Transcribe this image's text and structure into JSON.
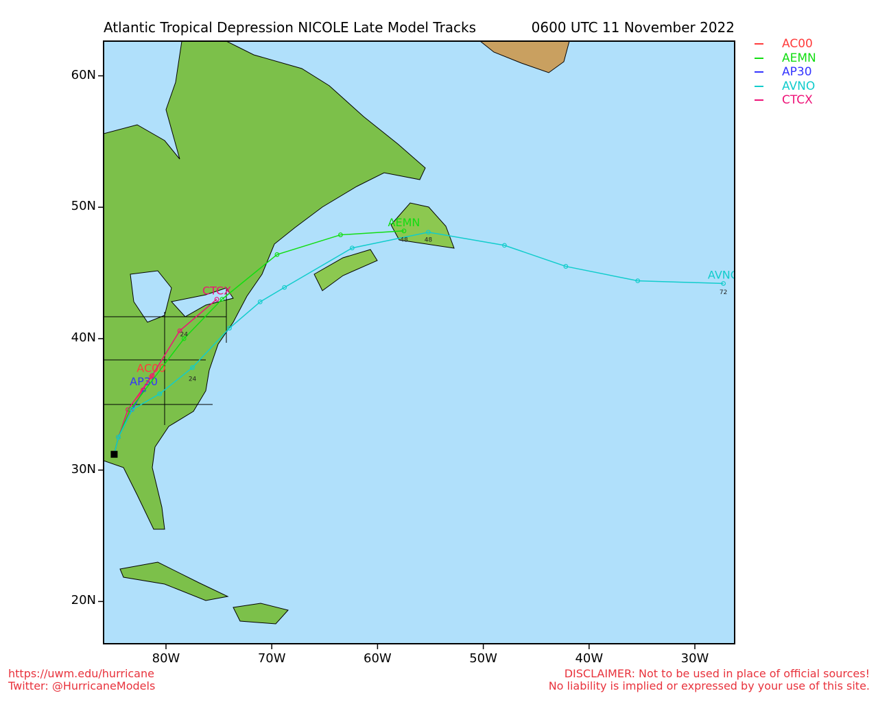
{
  "header": {
    "title": "Atlantic Tropical Depression NICOLE Late Model Tracks",
    "time": "0600 UTC 11 November 2022"
  },
  "axes": {
    "lat_ticks": [
      "60N",
      "50N",
      "40N",
      "30N",
      "20N"
    ],
    "lon_ticks": [
      "80W",
      "70W",
      "60W",
      "50W",
      "40W",
      "30W"
    ],
    "lat_values": [
      60,
      50,
      40,
      30,
      20
    ],
    "lon_values": [
      -80,
      -70,
      -60,
      -50,
      -40,
      -30
    ],
    "lon_range": [
      -85.9,
      -26.2
    ],
    "lat_range": [
      16.8,
      62.7
    ]
  },
  "colors": {
    "ocean": "#b0e0fb",
    "land": "#7cc04a",
    "frame": "#000000"
  },
  "legend": [
    {
      "name": "AC00",
      "color": "#ff3b3b"
    },
    {
      "name": "AEMN",
      "color": "#11dd11"
    },
    {
      "name": "AP30",
      "color": "#3333ff"
    },
    {
      "name": "AVNO",
      "color": "#11cccc"
    },
    {
      "name": "CTCX",
      "color": "#ee1177"
    }
  ],
  "storm_start": {
    "lon": -84.9,
    "lat": 31.2
  },
  "tracks": [
    {
      "name": "AC00",
      "color": "#ff3b3b",
      "points": [
        [
          -84.9,
          31.2
        ],
        [
          -84.5,
          32.5
        ],
        [
          -83.3,
          34.6
        ],
        [
          -82.2,
          36.1
        ],
        [
          -81.4,
          37.1
        ]
      ]
    },
    {
      "name": "AP30",
      "color": "#3333ff",
      "points": [
        [
          -84.9,
          31.2
        ],
        [
          -84.5,
          32.5
        ],
        [
          -83.2,
          34.6
        ],
        [
          -82.1,
          36.1
        ]
      ]
    },
    {
      "name": "CTCX",
      "color": "#ee1177",
      "points": [
        [
          -84.9,
          31.2
        ],
        [
          -84.5,
          32.5
        ],
        [
          -83.6,
          34.6
        ],
        [
          -81.3,
          37.2
        ],
        [
          -78.7,
          40.6
        ],
        [
          -75.2,
          43.0
        ]
      ]
    },
    {
      "name": "AEMN",
      "color": "#11dd11",
      "points": [
        [
          -84.9,
          31.2
        ],
        [
          -84.5,
          32.5
        ],
        [
          -83.4,
          34.6
        ],
        [
          -78.3,
          40.0
        ],
        [
          -74.7,
          43.0
        ],
        [
          -69.5,
          46.4
        ],
        [
          -63.5,
          47.9
        ],
        [
          -57.5,
          48.2
        ]
      ]
    },
    {
      "name": "AVNO",
      "color": "#11cccc",
      "points": [
        [
          -84.9,
          31.2
        ],
        [
          -84.5,
          32.5
        ],
        [
          -83.2,
          34.6
        ],
        [
          -80.6,
          35.8
        ],
        [
          -77.5,
          37.8
        ],
        [
          -74.0,
          40.8
        ],
        [
          -71.1,
          42.8
        ],
        [
          -68.8,
          43.9
        ],
        [
          -62.4,
          46.9
        ],
        [
          -55.2,
          48.1
        ],
        [
          -48.0,
          47.1
        ],
        [
          -42.2,
          45.5
        ],
        [
          -35.4,
          44.4
        ],
        [
          -27.3,
          44.2
        ]
      ]
    }
  ],
  "hour_labels": [
    {
      "text": "24",
      "lon": -77.5,
      "lat": 37.0
    },
    {
      "text": "24",
      "lon": -78.3,
      "lat": 40.4
    },
    {
      "text": "48",
      "lon": -57.5,
      "lat": 47.6
    },
    {
      "text": "48",
      "lon": -55.2,
      "lat": 47.6
    },
    {
      "text": "72",
      "lon": -27.3,
      "lat": 43.6
    }
  ],
  "footer": {
    "url": "https://uwm.edu/hurricane",
    "twitter": "Twitter: @HurricaneModels",
    "disclaimer1": "DISCLAIMER: Not to be used in place of official sources!",
    "disclaimer2": "No liability is implied or expressed by your use of this site."
  }
}
